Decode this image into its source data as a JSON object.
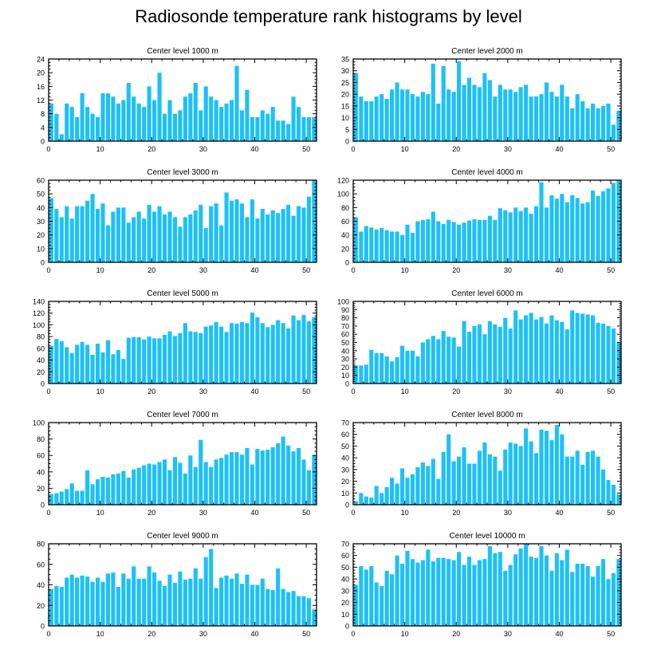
{
  "title": "Radiosonde temperature rank histograms by level",
  "colors": {
    "bar": "#1ec0f8",
    "axis": "#000000"
  },
  "chart_data": [
    {
      "type": "bar",
      "title": "Center level 1000 m",
      "xlabel": "",
      "ylabel": "",
      "xlim": [
        0,
        52
      ],
      "ylim": [
        0,
        24
      ],
      "xticks": [
        0,
        10,
        20,
        30,
        40,
        50
      ],
      "yticks": [
        0,
        4,
        8,
        12,
        16,
        20,
        24
      ],
      "x": [
        0,
        1,
        2,
        3,
        4,
        5,
        6,
        7,
        8,
        9,
        10,
        11,
        12,
        13,
        14,
        15,
        16,
        17,
        18,
        19,
        20,
        21,
        22,
        23,
        24,
        25,
        26,
        27,
        28,
        29,
        30,
        31,
        32,
        33,
        34,
        35,
        36,
        37,
        38,
        39,
        40,
        41,
        42,
        43,
        44,
        45,
        46,
        47,
        48,
        49,
        50,
        51
      ],
      "values": [
        11,
        8,
        2,
        11,
        10,
        7,
        14,
        10,
        8,
        7,
        14,
        14,
        13,
        11,
        12,
        17,
        13,
        11,
        10,
        16,
        12,
        20,
        8,
        12,
        8,
        9,
        13,
        14,
        17,
        9,
        16,
        13,
        12,
        10,
        11,
        12,
        22,
        9,
        15,
        7,
        7,
        9,
        8,
        10,
        6,
        6,
        5,
        13,
        10,
        7,
        7,
        7
      ]
    },
    {
      "type": "bar",
      "title": "Center level 2000 m",
      "xlabel": "",
      "ylabel": "",
      "xlim": [
        0,
        52
      ],
      "ylim": [
        0,
        35
      ],
      "xticks": [
        0,
        10,
        20,
        30,
        40,
        50
      ],
      "yticks": [
        0,
        5,
        10,
        15,
        20,
        25,
        30,
        35
      ],
      "x": [
        0,
        1,
        2,
        3,
        4,
        5,
        6,
        7,
        8,
        9,
        10,
        11,
        12,
        13,
        14,
        15,
        16,
        17,
        18,
        19,
        20,
        21,
        22,
        23,
        24,
        25,
        26,
        27,
        28,
        29,
        30,
        31,
        32,
        33,
        34,
        35,
        36,
        37,
        38,
        39,
        40,
        41,
        42,
        43,
        44,
        45,
        46,
        47,
        48,
        49,
        50,
        51
      ],
      "values": [
        29,
        19,
        17,
        17,
        19,
        20,
        18,
        22,
        25,
        22,
        22,
        20,
        19,
        21,
        20,
        33,
        16,
        32,
        22,
        21,
        34,
        24,
        27,
        24,
        23,
        29,
        26,
        19,
        24,
        22,
        22,
        21,
        23,
        24,
        19,
        19,
        20,
        25,
        21,
        19,
        24,
        19,
        14,
        20,
        17,
        14,
        16,
        14,
        15,
        16,
        7,
        13
      ]
    },
    {
      "type": "bar",
      "title": "Center level 3000 m",
      "xlabel": "",
      "ylabel": "",
      "xlim": [
        0,
        52
      ],
      "ylim": [
        0,
        60
      ],
      "xticks": [
        0,
        10,
        20,
        30,
        40,
        50
      ],
      "yticks": [
        0,
        10,
        20,
        30,
        40,
        50,
        60
      ],
      "x": [
        0,
        1,
        2,
        3,
        4,
        5,
        6,
        7,
        8,
        9,
        10,
        11,
        12,
        13,
        14,
        15,
        16,
        17,
        18,
        19,
        20,
        21,
        22,
        23,
        24,
        25,
        26,
        27,
        28,
        29,
        30,
        31,
        32,
        33,
        34,
        35,
        36,
        37,
        38,
        39,
        40,
        41,
        42,
        43,
        44,
        45,
        46,
        47,
        48,
        49,
        50,
        51
      ],
      "values": [
        47,
        39,
        33,
        41,
        32,
        41,
        41,
        45,
        50,
        39,
        43,
        27,
        37,
        40,
        40,
        29,
        33,
        37,
        32,
        42,
        37,
        41,
        35,
        37,
        33,
        26,
        33,
        35,
        38,
        42,
        25,
        41,
        43,
        27,
        51,
        45,
        46,
        43,
        33,
        46,
        32,
        39,
        35,
        38,
        36,
        39,
        42,
        34,
        41,
        40,
        48,
        60
      ]
    },
    {
      "type": "bar",
      "title": "Center level 4000 m",
      "xlabel": "",
      "ylabel": "",
      "xlim": [
        0,
        52
      ],
      "ylim": [
        0,
        120
      ],
      "xticks": [
        0,
        10,
        20,
        30,
        40,
        50
      ],
      "yticks": [
        0,
        20,
        40,
        60,
        80,
        100,
        120
      ],
      "x": [
        0,
        1,
        2,
        3,
        4,
        5,
        6,
        7,
        8,
        9,
        10,
        11,
        12,
        13,
        14,
        15,
        16,
        17,
        18,
        19,
        20,
        21,
        22,
        23,
        24,
        25,
        26,
        27,
        28,
        29,
        30,
        31,
        32,
        33,
        34,
        35,
        36,
        37,
        38,
        39,
        40,
        41,
        42,
        43,
        44,
        45,
        46,
        47,
        48,
        49,
        50,
        51
      ],
      "values": [
        66,
        45,
        53,
        51,
        48,
        50,
        47,
        45,
        45,
        40,
        55,
        43,
        60,
        62,
        63,
        74,
        60,
        56,
        62,
        59,
        55,
        58,
        61,
        63,
        62,
        62,
        68,
        62,
        79,
        76,
        73,
        80,
        75,
        80,
        71,
        82,
        117,
        80,
        98,
        93,
        100,
        88,
        98,
        94,
        86,
        88,
        105,
        97,
        104,
        108,
        116,
        120
      ]
    },
    {
      "type": "bar",
      "title": "Center level 5000 m",
      "xlabel": "",
      "ylabel": "",
      "xlim": [
        0,
        52
      ],
      "ylim": [
        0,
        140
      ],
      "xticks": [
        0,
        10,
        20,
        30,
        40,
        50
      ],
      "yticks": [
        0,
        20,
        40,
        60,
        80,
        100,
        120,
        140
      ],
      "x": [
        0,
        1,
        2,
        3,
        4,
        5,
        6,
        7,
        8,
        9,
        10,
        11,
        12,
        13,
        14,
        15,
        16,
        17,
        18,
        19,
        20,
        21,
        22,
        23,
        24,
        25,
        26,
        27,
        28,
        29,
        30,
        31,
        32,
        33,
        34,
        35,
        36,
        37,
        38,
        39,
        40,
        41,
        42,
        43,
        44,
        45,
        46,
        47,
        48,
        49,
        50,
        51
      ],
      "values": [
        64,
        76,
        72,
        62,
        52,
        66,
        71,
        66,
        49,
        68,
        53,
        74,
        50,
        57,
        42,
        78,
        79,
        79,
        75,
        80,
        77,
        77,
        83,
        89,
        81,
        86,
        103,
        89,
        88,
        86,
        97,
        99,
        105,
        97,
        88,
        103,
        102,
        105,
        103,
        121,
        113,
        103,
        96,
        100,
        108,
        103,
        94,
        116,
        108,
        117,
        106,
        113
      ]
    },
    {
      "type": "bar",
      "title": "Center level 6000 m",
      "xlabel": "",
      "ylabel": "",
      "xlim": [
        0,
        52
      ],
      "ylim": [
        0,
        100
      ],
      "xticks": [
        0,
        10,
        20,
        30,
        40,
        50
      ],
      "yticks": [
        0,
        10,
        20,
        30,
        40,
        50,
        60,
        70,
        80,
        90,
        100
      ],
      "x": [
        0,
        1,
        2,
        3,
        4,
        5,
        6,
        7,
        8,
        9,
        10,
        11,
        12,
        13,
        14,
        15,
        16,
        17,
        18,
        19,
        20,
        21,
        22,
        23,
        24,
        25,
        26,
        27,
        28,
        29,
        30,
        31,
        32,
        33,
        34,
        35,
        36,
        37,
        38,
        39,
        40,
        41,
        42,
        43,
        44,
        45,
        46,
        47,
        48,
        49,
        50,
        51
      ],
      "values": [
        22,
        22,
        23,
        41,
        37,
        37,
        33,
        27,
        32,
        46,
        40,
        40,
        33,
        50,
        54,
        58,
        54,
        64,
        57,
        56,
        45,
        76,
        63,
        70,
        72,
        60,
        76,
        72,
        69,
        80,
        67,
        89,
        78,
        83,
        86,
        78,
        81,
        73,
        83,
        77,
        75,
        66,
        89,
        86,
        85,
        84,
        83,
        74,
        73,
        70,
        67,
        50
      ]
    },
    {
      "type": "bar",
      "title": "Center level 7000 m",
      "xlabel": "",
      "ylabel": "",
      "xlim": [
        0,
        52
      ],
      "ylim": [
        0,
        100
      ],
      "xticks": [
        0,
        10,
        20,
        30,
        40,
        50
      ],
      "yticks": [
        0,
        20,
        40,
        60,
        80,
        100
      ],
      "x": [
        0,
        1,
        2,
        3,
        4,
        5,
        6,
        7,
        8,
        9,
        10,
        11,
        12,
        13,
        14,
        15,
        16,
        17,
        18,
        19,
        20,
        21,
        22,
        23,
        24,
        25,
        26,
        27,
        28,
        29,
        30,
        31,
        32,
        33,
        34,
        35,
        36,
        37,
        38,
        39,
        40,
        41,
        42,
        43,
        44,
        45,
        46,
        47,
        48,
        49,
        50,
        51
      ],
      "values": [
        13,
        14,
        16,
        19,
        26,
        17,
        17,
        42,
        25,
        31,
        34,
        33,
        37,
        38,
        41,
        33,
        43,
        45,
        48,
        50,
        49,
        52,
        55,
        42,
        58,
        51,
        38,
        60,
        46,
        79,
        52,
        46,
        55,
        57,
        61,
        64,
        64,
        61,
        69,
        49,
        68,
        66,
        67,
        70,
        75,
        83,
        72,
        65,
        69,
        55,
        42,
        60
      ]
    },
    {
      "type": "bar",
      "title": "Center level 8000 m",
      "xlabel": "",
      "ylabel": "",
      "xlim": [
        0,
        52
      ],
      "ylim": [
        0,
        70
      ],
      "xticks": [
        0,
        10,
        20,
        30,
        40,
        50
      ],
      "yticks": [
        0,
        10,
        20,
        30,
        40,
        50,
        60,
        70
      ],
      "x": [
        0,
        1,
        2,
        3,
        4,
        5,
        6,
        7,
        8,
        9,
        10,
        11,
        12,
        13,
        14,
        15,
        16,
        17,
        18,
        19,
        20,
        21,
        22,
        23,
        24,
        25,
        26,
        27,
        28,
        29,
        30,
        31,
        32,
        33,
        34,
        35,
        36,
        37,
        38,
        39,
        40,
        41,
        42,
        43,
        44,
        45,
        46,
        47,
        48,
        49,
        50,
        51
      ],
      "values": [
        3,
        10,
        7,
        6,
        16,
        10,
        15,
        23,
        18,
        31,
        23,
        26,
        32,
        36,
        33,
        39,
        22,
        45,
        60,
        37,
        41,
        49,
        35,
        35,
        46,
        53,
        43,
        41,
        29,
        47,
        53,
        52,
        50,
        65,
        54,
        44,
        64,
        63,
        55,
        68,
        60,
        41,
        41,
        46,
        34,
        45,
        46,
        41,
        30,
        21,
        17,
        9
      ]
    },
    {
      "type": "bar",
      "title": "Center level 9000 m",
      "xlabel": "",
      "ylabel": "",
      "xlim": [
        0,
        52
      ],
      "ylim": [
        0,
        80
      ],
      "xticks": [
        0,
        10,
        20,
        30,
        40,
        50
      ],
      "yticks": [
        0,
        20,
        40,
        60,
        80
      ],
      "x": [
        0,
        1,
        2,
        3,
        4,
        5,
        6,
        7,
        8,
        9,
        10,
        11,
        12,
        13,
        14,
        15,
        16,
        17,
        18,
        19,
        20,
        21,
        22,
        23,
        24,
        25,
        26,
        27,
        28,
        29,
        30,
        31,
        32,
        33,
        34,
        35,
        36,
        37,
        38,
        39,
        40,
        41,
        42,
        43,
        44,
        45,
        46,
        47,
        48,
        49,
        50,
        51
      ],
      "values": [
        36,
        39,
        38,
        47,
        50,
        47,
        49,
        48,
        43,
        47,
        43,
        51,
        52,
        38,
        51,
        46,
        58,
        46,
        46,
        58,
        52,
        44,
        39,
        50,
        42,
        53,
        45,
        46,
        56,
        46,
        67,
        75,
        37,
        47,
        49,
        46,
        51,
        41,
        50,
        40,
        40,
        46,
        36,
        35,
        56,
        36,
        33,
        34,
        29,
        29,
        27,
        16
      ]
    },
    {
      "type": "bar",
      "title": "Center level 10000 m",
      "xlabel": "",
      "ylabel": "",
      "xlim": [
        0,
        52
      ],
      "ylim": [
        0,
        70
      ],
      "xticks": [
        0,
        10,
        20,
        30,
        40,
        50
      ],
      "yticks": [
        0,
        10,
        20,
        30,
        40,
        50,
        60,
        70
      ],
      "x": [
        0,
        1,
        2,
        3,
        4,
        5,
        6,
        7,
        8,
        9,
        10,
        11,
        12,
        13,
        14,
        15,
        16,
        17,
        18,
        19,
        20,
        21,
        22,
        23,
        24,
        25,
        26,
        27,
        28,
        29,
        30,
        31,
        32,
        33,
        34,
        35,
        36,
        37,
        38,
        39,
        40,
        41,
        42,
        43,
        44,
        45,
        46,
        47,
        48,
        49,
        50,
        51
      ],
      "values": [
        35,
        51,
        48,
        51,
        37,
        34,
        47,
        44,
        60,
        53,
        64,
        57,
        54,
        56,
        65,
        55,
        58,
        58,
        57,
        56,
        63,
        52,
        59,
        52,
        56,
        57,
        68,
        62,
        63,
        47,
        52,
        61,
        66,
        70,
        59,
        58,
        68,
        60,
        47,
        62,
        56,
        65,
        46,
        53,
        53,
        51,
        42,
        51,
        57,
        40,
        45,
        57
      ]
    }
  ]
}
